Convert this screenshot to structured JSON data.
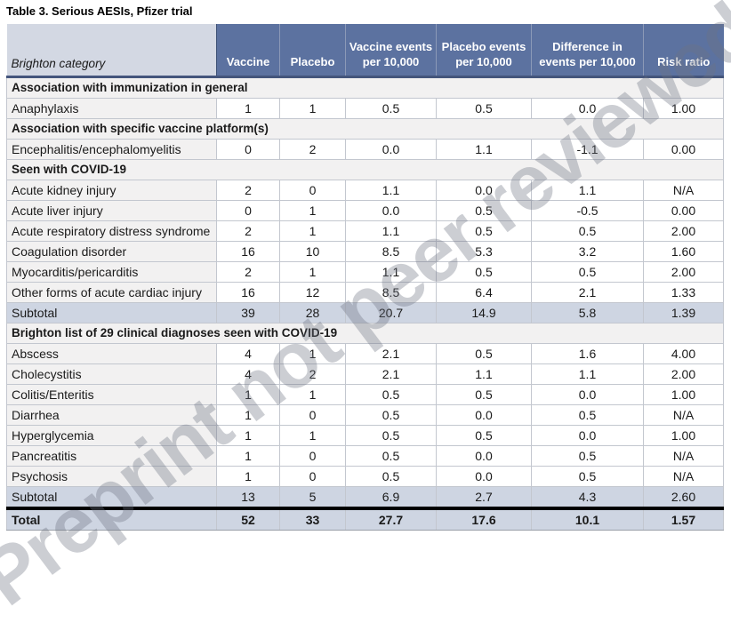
{
  "page": {
    "title": "Table 3. Serious AESIs, Pfizer trial",
    "watermark": "Preprint not peer reviewed"
  },
  "colors": {
    "header_bg": "#5C72A0",
    "header_first_bg": "#D3D8E3",
    "header_rule": "#44557C",
    "section_bg": "#F2F1F1",
    "category_cell_bg": "#F2F1F1",
    "subtotal_bg": "#CED5E2",
    "total_bg": "#CED5E2",
    "grid_border": "#C3C7CF",
    "total_rule": "#000000",
    "watermark_gray": "#6C7482"
  },
  "table": {
    "header": {
      "category_label": "Brighton category",
      "columns": [
        "Vaccine",
        "Placebo",
        "Vaccine events per 10,000",
        "Placebo events per 10,000",
        "Difference in events per 10,000",
        "Risk ratio"
      ]
    },
    "sections": [
      {
        "label": "Association with immunization in general",
        "rows": [
          {
            "type": "data",
            "category": "Anaphylaxis",
            "values": [
              "1",
              "1",
              "0.5",
              "0.5",
              "0.0",
              "1.00"
            ]
          }
        ]
      },
      {
        "label": "Association with specific vaccine platform(s)",
        "rows": [
          {
            "type": "data",
            "category": "Encephalitis/encephalomyelitis",
            "values": [
              "0",
              "2",
              "0.0",
              "1.1",
              "-1.1",
              "0.00"
            ]
          }
        ]
      },
      {
        "label": "Seen with COVID-19",
        "rows": [
          {
            "type": "data",
            "category": "Acute kidney injury",
            "values": [
              "2",
              "0",
              "1.1",
              "0.0",
              "1.1",
              "N/A"
            ]
          },
          {
            "type": "data",
            "category": "Acute liver injury",
            "values": [
              "0",
              "1",
              "0.0",
              "0.5",
              "-0.5",
              "0.00"
            ]
          },
          {
            "type": "data",
            "category": "Acute respiratory distress syndrome",
            "values": [
              "2",
              "1",
              "1.1",
              "0.5",
              "0.5",
              "2.00"
            ]
          },
          {
            "type": "data",
            "category": "Coagulation disorder",
            "values": [
              "16",
              "10",
              "8.5",
              "5.3",
              "3.2",
              "1.60"
            ]
          },
          {
            "type": "data",
            "category": "Myocarditis/pericarditis",
            "values": [
              "2",
              "1",
              "1.1",
              "0.5",
              "0.5",
              "2.00"
            ]
          },
          {
            "type": "data",
            "category": "Other forms of acute cardiac injury",
            "values": [
              "16",
              "12",
              "8.5",
              "6.4",
              "2.1",
              "1.33"
            ]
          },
          {
            "type": "subtotal",
            "category": "Subtotal",
            "values": [
              "39",
              "28",
              "20.7",
              "14.9",
              "5.8",
              "1.39"
            ]
          }
        ]
      },
      {
        "label": "Brighton list of 29 clinical diagnoses seen with COVID-19",
        "rows": [
          {
            "type": "data",
            "category": "Abscess",
            "values": [
              "4",
              "1",
              "2.1",
              "0.5",
              "1.6",
              "4.00"
            ]
          },
          {
            "type": "data",
            "category": "Cholecystitis",
            "values": [
              "4",
              "2",
              "2.1",
              "1.1",
              "1.1",
              "2.00"
            ]
          },
          {
            "type": "data",
            "category": "Colitis/Enteritis",
            "values": [
              "1",
              "1",
              "0.5",
              "0.5",
              "0.0",
              "1.00"
            ]
          },
          {
            "type": "data",
            "category": "Diarrhea",
            "values": [
              "1",
              "0",
              "0.5",
              "0.0",
              "0.5",
              "N/A"
            ]
          },
          {
            "type": "data",
            "category": "Hyperglycemia",
            "values": [
              "1",
              "1",
              "0.5",
              "0.5",
              "0.0",
              "1.00"
            ]
          },
          {
            "type": "data",
            "category": "Pancreatitis",
            "values": [
              "1",
              "0",
              "0.5",
              "0.0",
              "0.5",
              "N/A"
            ]
          },
          {
            "type": "data",
            "category": "Psychosis",
            "values": [
              "1",
              "0",
              "0.5",
              "0.0",
              "0.5",
              "N/A"
            ]
          },
          {
            "type": "subtotal",
            "category": "Subtotal",
            "values": [
              "13",
              "5",
              "6.9",
              "2.7",
              "4.3",
              "2.60"
            ]
          }
        ]
      }
    ],
    "total_row": {
      "label": "Total",
      "values": [
        "52",
        "33",
        "27.7",
        "17.6",
        "10.1",
        "1.57"
      ]
    }
  }
}
